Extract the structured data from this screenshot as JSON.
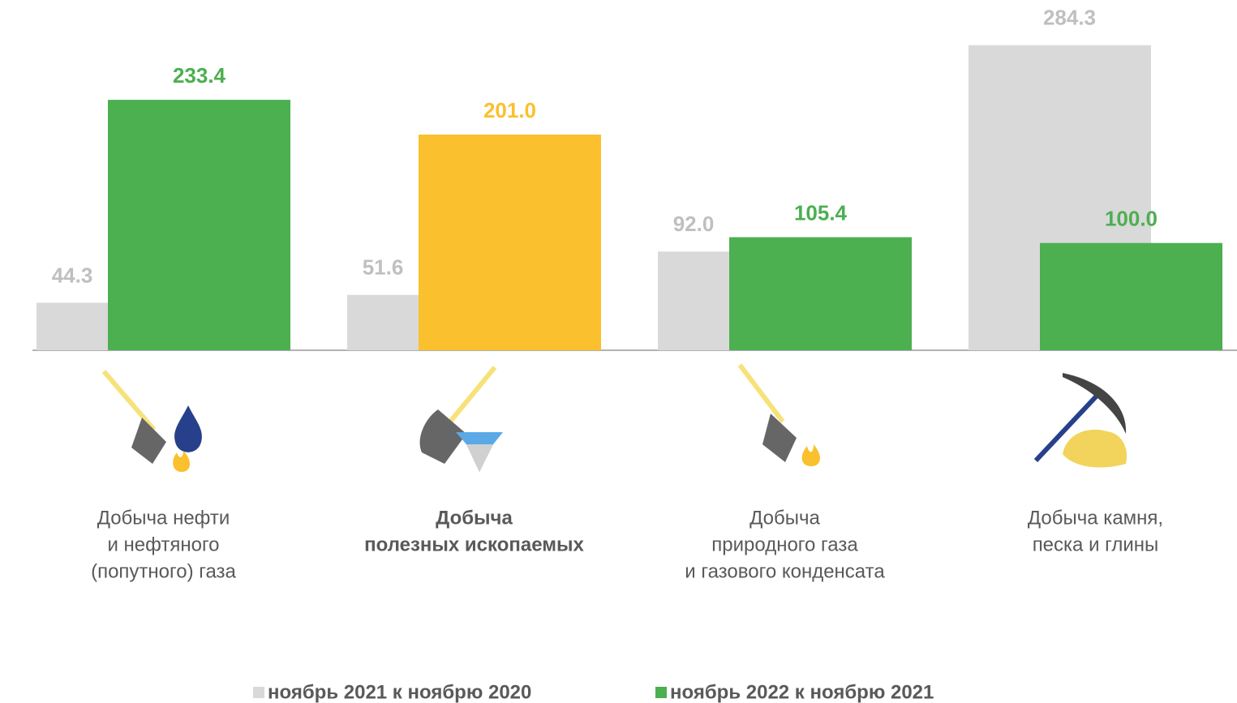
{
  "chart_data": {
    "type": "bar",
    "categories": [
      [
        "Добыча нефти",
        "и нефтяного",
        "(попутного) газа"
      ],
      [
        "Добыча",
        "полезных ископаемых"
      ],
      [
        "Добыча",
        "природного газа",
        "и газового конденсата"
      ],
      [
        "Добыча камня,",
        "песка и глины"
      ]
    ],
    "highlight": 1,
    "series": [
      {
        "name": "ноябрь 2021 к ноябрю 2020",
        "color": "#d9d9d9",
        "label_color": "#bfbfbf",
        "values": [
          44.3,
          51.6,
          92.0,
          284.3
        ],
        "value_labels": [
          "44.3",
          "51.6",
          "92.0",
          "284.3"
        ]
      },
      {
        "name": "ноябрь 2022 к ноябрю 2021",
        "color": "#4caf50",
        "highlight_color": "#fbc02d",
        "values": [
          233.4,
          201.0,
          105.4,
          100.0
        ],
        "value_labels": [
          "233.4",
          "201.0",
          "105.4",
          "100.0"
        ]
      }
    ],
    "ylim": [
      0,
      300
    ]
  }
}
